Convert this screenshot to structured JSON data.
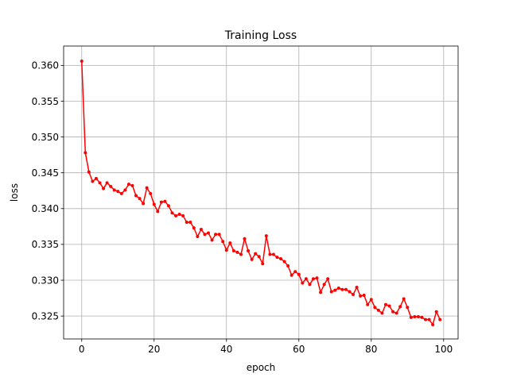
{
  "chart_data": {
    "type": "line",
    "title": "Training Loss",
    "xlabel": "epoch",
    "ylabel": "loss",
    "xlim": [
      -5,
      104
    ],
    "ylim": [
      0.3218,
      0.3627
    ],
    "xticks": [
      0,
      20,
      40,
      60,
      80,
      100
    ],
    "yticks": [
      0.325,
      0.33,
      0.335,
      0.34,
      0.345,
      0.35,
      0.355,
      0.36
    ],
    "ytick_labels": [
      "0.325",
      "0.330",
      "0.335",
      "0.340",
      "0.345",
      "0.350",
      "0.355",
      "0.360"
    ],
    "grid": true,
    "series": [
      {
        "color": "#ff0000",
        "marker": "circle",
        "x": [
          0,
          1,
          2,
          3,
          4,
          5,
          6,
          7,
          8,
          9,
          10,
          11,
          12,
          13,
          14,
          15,
          16,
          17,
          18,
          19,
          20,
          21,
          22,
          23,
          24,
          25,
          26,
          27,
          28,
          29,
          30,
          31,
          32,
          33,
          34,
          35,
          36,
          37,
          38,
          39,
          40,
          41,
          42,
          43,
          44,
          45,
          46,
          47,
          48,
          49,
          50,
          51,
          52,
          53,
          54,
          55,
          56,
          57,
          58,
          59,
          60,
          61,
          62,
          63,
          64,
          65,
          66,
          67,
          68,
          69,
          70,
          71,
          72,
          73,
          74,
          75,
          76,
          77,
          78,
          79,
          80,
          81,
          82,
          83,
          84,
          85,
          86,
          87,
          88,
          89,
          90,
          91,
          92,
          93,
          94,
          95,
          96,
          97,
          98,
          99
        ],
        "values": [
          0.3606,
          0.3478,
          0.3451,
          0.3438,
          0.3442,
          0.3436,
          0.3428,
          0.3436,
          0.3431,
          0.3426,
          0.3424,
          0.3421,
          0.3426,
          0.3434,
          0.3432,
          0.3418,
          0.3414,
          0.3407,
          0.3429,
          0.3421,
          0.3406,
          0.3396,
          0.3409,
          0.341,
          0.3404,
          0.3394,
          0.339,
          0.3392,
          0.339,
          0.3381,
          0.3381,
          0.3373,
          0.3361,
          0.3371,
          0.3364,
          0.3366,
          0.3356,
          0.3364,
          0.3364,
          0.3354,
          0.3342,
          0.3352,
          0.3341,
          0.3339,
          0.3336,
          0.3358,
          0.3341,
          0.3329,
          0.3337,
          0.3333,
          0.3323,
          0.3362,
          0.3336,
          0.3336,
          0.3332,
          0.333,
          0.3326,
          0.332,
          0.3307,
          0.3312,
          0.3308,
          0.3296,
          0.3302,
          0.3294,
          0.3302,
          0.3303,
          0.3283,
          0.3294,
          0.3302,
          0.3284,
          0.3286,
          0.3289,
          0.3287,
          0.3287,
          0.3284,
          0.328,
          0.329,
          0.3278,
          0.3279,
          0.3266,
          0.3273,
          0.3262,
          0.3258,
          0.3254,
          0.3266,
          0.3264,
          0.3256,
          0.3254,
          0.3263,
          0.3274,
          0.3262,
          0.3248,
          0.3249,
          0.3249,
          0.3248,
          0.3245,
          0.3245,
          0.3238,
          0.3256,
          0.3245
        ]
      }
    ]
  }
}
